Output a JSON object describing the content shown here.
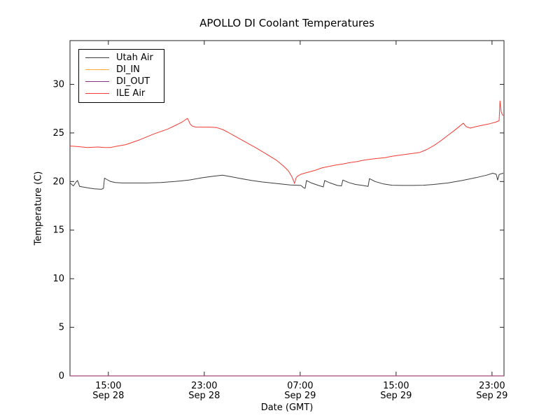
{
  "chart_data": {
    "type": "line",
    "title": "APOLLO DI Coolant Temperatures",
    "xlabel": "Date (GMT)",
    "ylabel": "Temperature (C)",
    "grid": false,
    "legend_position": "upper left",
    "x_unit": "hours since Sep 28 00:00 GMT",
    "xlim": [
      11.8,
      48
    ],
    "ylim": [
      0,
      34.5
    ],
    "x_ticks": [
      {
        "v": 15,
        "time": "15:00",
        "date": "Sep 28"
      },
      {
        "v": 23,
        "time": "23:00",
        "date": "Sep 28"
      },
      {
        "v": 31,
        "time": "07:00",
        "date": "Sep 29"
      },
      {
        "v": 39,
        "time": "15:00",
        "date": "Sep 29"
      },
      {
        "v": 47,
        "time": "23:00",
        "date": "Sep 29"
      }
    ],
    "y_ticks": [
      0,
      5,
      10,
      15,
      20,
      25,
      30
    ],
    "axis_color": "#222222",
    "series": [
      {
        "name": "Utah Air",
        "color": "#3b3b3b",
        "width": 1,
        "points": [
          [
            11.8,
            19.85
          ],
          [
            12.08,
            19.55
          ],
          [
            12.31,
            19.95
          ],
          [
            12.43,
            20.1
          ],
          [
            12.6,
            19.5
          ],
          [
            13.25,
            19.35
          ],
          [
            13.83,
            19.25
          ],
          [
            14.42,
            19.2
          ],
          [
            14.59,
            19.3
          ],
          [
            14.68,
            20.35
          ],
          [
            14.88,
            20.2
          ],
          [
            15.18,
            20.0
          ],
          [
            15.58,
            19.9
          ],
          [
            16.17,
            19.85
          ],
          [
            17.04,
            19.85
          ],
          [
            18.21,
            19.85
          ],
          [
            19.38,
            19.9
          ],
          [
            20.55,
            20.0
          ],
          [
            21.72,
            20.15
          ],
          [
            22.88,
            20.4
          ],
          [
            23.76,
            20.55
          ],
          [
            24.52,
            20.65
          ],
          [
            25.22,
            20.5
          ],
          [
            26.09,
            20.3
          ],
          [
            26.97,
            20.1
          ],
          [
            27.85,
            19.95
          ],
          [
            29.01,
            19.8
          ],
          [
            30.18,
            19.65
          ],
          [
            31.06,
            19.6
          ],
          [
            31.29,
            19.35
          ],
          [
            31.41,
            19.3
          ],
          [
            31.53,
            20.1
          ],
          [
            31.94,
            19.85
          ],
          [
            32.52,
            19.6
          ],
          [
            32.93,
            19.45
          ],
          [
            33.04,
            20.1
          ],
          [
            33.51,
            19.85
          ],
          [
            34.09,
            19.6
          ],
          [
            34.44,
            19.55
          ],
          [
            34.56,
            20.15
          ],
          [
            35.03,
            19.9
          ],
          [
            35.61,
            19.7
          ],
          [
            36.2,
            19.6
          ],
          [
            36.66,
            19.5
          ],
          [
            36.78,
            20.3
          ],
          [
            37.25,
            20.0
          ],
          [
            37.95,
            19.75
          ],
          [
            38.65,
            19.62
          ],
          [
            39.53,
            19.6
          ],
          [
            40.4,
            19.6
          ],
          [
            41.28,
            19.62
          ],
          [
            42.15,
            19.7
          ],
          [
            43.32,
            19.85
          ],
          [
            44.49,
            20.1
          ],
          [
            45.66,
            20.4
          ],
          [
            46.53,
            20.65
          ],
          [
            47.06,
            20.85
          ],
          [
            47.35,
            20.75
          ],
          [
            47.47,
            20.15
          ],
          [
            47.59,
            20.7
          ],
          [
            47.76,
            20.8
          ],
          [
            47.94,
            20.85
          ]
        ]
      },
      {
        "name": "DI_IN",
        "color": "#ffaa33",
        "width": 1.3,
        "points": [
          [
            11.8,
            0
          ],
          [
            48,
            0
          ]
        ]
      },
      {
        "name": "DI_OUT",
        "color": "#8a2f8a",
        "width": 1.1,
        "points": [
          [
            11.8,
            0
          ],
          [
            48,
            0
          ]
        ]
      },
      {
        "name": "ILE Air",
        "color": "#f23b32",
        "width": 1,
        "points": [
          [
            11.8,
            23.65
          ],
          [
            12.37,
            23.6
          ],
          [
            13.25,
            23.5
          ],
          [
            14.12,
            23.55
          ],
          [
            14.71,
            23.5
          ],
          [
            15.18,
            23.5
          ],
          [
            15.58,
            23.6
          ],
          [
            16.46,
            23.8
          ],
          [
            17.63,
            24.3
          ],
          [
            18.8,
            24.9
          ],
          [
            19.96,
            25.4
          ],
          [
            20.55,
            25.75
          ],
          [
            21.13,
            26.1
          ],
          [
            21.6,
            26.5
          ],
          [
            21.72,
            26.2
          ],
          [
            21.83,
            25.9
          ],
          [
            22.01,
            25.7
          ],
          [
            22.3,
            25.6
          ],
          [
            22.88,
            25.6
          ],
          [
            23.47,
            25.6
          ],
          [
            24.05,
            25.55
          ],
          [
            24.52,
            25.35
          ],
          [
            24.93,
            25.1
          ],
          [
            25.51,
            24.7
          ],
          [
            26.39,
            24.1
          ],
          [
            27.26,
            23.5
          ],
          [
            28.14,
            22.85
          ],
          [
            29.01,
            22.2
          ],
          [
            29.6,
            21.6
          ],
          [
            30.01,
            21.1
          ],
          [
            30.3,
            20.5
          ],
          [
            30.44,
            20.1
          ],
          [
            30.53,
            19.8
          ],
          [
            30.65,
            20.35
          ],
          [
            30.77,
            20.55
          ],
          [
            31.06,
            20.75
          ],
          [
            31.64,
            20.95
          ],
          [
            32.23,
            21.15
          ],
          [
            32.81,
            21.4
          ],
          [
            33.39,
            21.55
          ],
          [
            33.98,
            21.7
          ],
          [
            34.56,
            21.8
          ],
          [
            35.15,
            21.95
          ],
          [
            35.73,
            22.05
          ],
          [
            36.31,
            22.2
          ],
          [
            37.19,
            22.35
          ],
          [
            38.07,
            22.45
          ],
          [
            38.65,
            22.6
          ],
          [
            39.53,
            22.75
          ],
          [
            40.4,
            22.9
          ],
          [
            40.99,
            23.0
          ],
          [
            41.57,
            23.3
          ],
          [
            42.15,
            23.7
          ],
          [
            42.74,
            24.2
          ],
          [
            43.32,
            24.75
          ],
          [
            43.91,
            25.3
          ],
          [
            44.31,
            25.7
          ],
          [
            44.61,
            26.0
          ],
          [
            44.84,
            25.65
          ],
          [
            45.19,
            25.5
          ],
          [
            45.66,
            25.65
          ],
          [
            46.24,
            25.8
          ],
          [
            46.82,
            25.95
          ],
          [
            47.29,
            26.1
          ],
          [
            47.59,
            26.25
          ],
          [
            47.67,
            28.3
          ],
          [
            47.76,
            27.2
          ],
          [
            47.88,
            26.85
          ],
          [
            47.94,
            26.8
          ]
        ]
      }
    ]
  }
}
